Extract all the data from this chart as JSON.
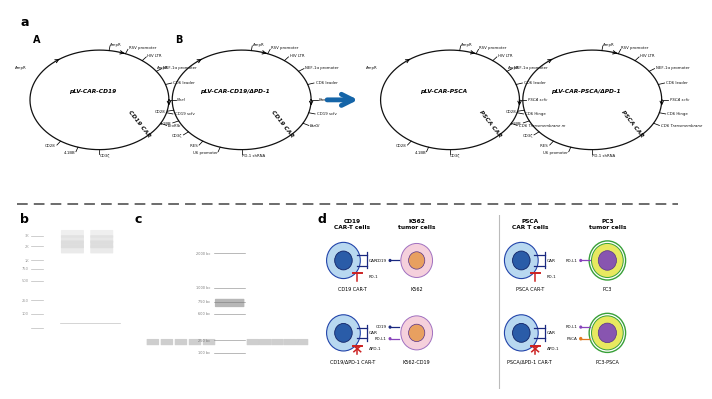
{
  "bg_color": "#ffffff",
  "panel_a_label": "a",
  "panel_b_label": "b",
  "panel_c_label": "c",
  "panel_d_label": "d",
  "plasmid_names": [
    "pLV-CAR-CD19",
    "pLV-CAR-CD19/ΔPD-1",
    "pLV-CAR-PSCA",
    "pLV-CAR-PSCA/ΔPD-1"
  ],
  "plasmid_letters": [
    "A",
    "B",
    "",
    ""
  ],
  "plasmid_car_labels": [
    "CD19 CAR",
    "CD19 CAR",
    "PSCA CAR",
    "PSCA CAR"
  ],
  "arrow_color": "#1565a8",
  "dashed_line_color": "#444444",
  "car_t_outer": "#b8d8f0",
  "car_t_inner": "#2a5ca8",
  "k562_outer": "#f5d0dc",
  "k562_inner": "#e8a060",
  "k562_edge": "#a070c0",
  "pc3_outer": "#e8e860",
  "pc3_inner": "#8855b0",
  "pc3_ring": "#38a038",
  "car_color": "#1a2880",
  "pd1_color": "#cc2222",
  "psca_dot_color": "#e07820",
  "gel_b_bg": "#080808",
  "gel_c_bg": "#080808",
  "gel_band_color": "#cccccc",
  "marker_band_color": "#888888",
  "plasmid_top_labels_A": [
    "AmpR",
    "RSV promoter",
    "HIV LTR",
    "NEF-1α promoter",
    "CD6 leader",
    "NheI",
    "CD19 scfv",
    "EcoRIb",
    "CD6 Hinge",
    "CD6 Transmembrane"
  ],
  "plasmid_bot_labels_A": [
    "CD3ζ",
    "4-1BB",
    "CD28"
  ],
  "plasmid_top_labels_B": [
    "AmpR",
    "RSV promoter",
    "HIV LTR",
    "NEF-1α promoter",
    "CD6 leader",
    "BamHII",
    "CD19 scfv",
    "BsrGI",
    "CD6 Hinge",
    "CD6 Transmembrane"
  ],
  "plasmid_bot_labels_B": [
    "PD-1 shRNA",
    "U6 promoter",
    "IRES",
    "CD3ζ",
    "4-1BB",
    "CD28"
  ],
  "plasmid_top_labels_C": [
    "AmpR",
    "RSV promoter",
    "HIV LTR",
    "NEF-1α promoter",
    "CD6 leader",
    "PSCA scfv",
    "CD6 Hinge",
    "CD6 Transmembrane m"
  ],
  "plasmid_bot_labels_C": [
    "CD3ζ",
    "4-1BB",
    "CD28"
  ],
  "plasmid_top_labels_D": [
    "AmpR",
    "RSV promoter",
    "HIV LTR",
    "NEF-1α promoter",
    "CD6 leader",
    "PSCA scfv",
    "CD6 Hinge",
    "CD6 Transmembrane"
  ],
  "plasmid_bot_labels_D": [
    "PD-1 shRNA",
    "U6 promoter",
    "IRES",
    "CD3ζ",
    "4-1BB",
    "CD28"
  ],
  "gel_b_size_labels": [
    "3K",
    "2K",
    "1K",
    "750",
    "500",
    "250",
    "100"
  ],
  "gel_b_size_y": [
    8.8,
    8.2,
    7.4,
    6.9,
    6.2,
    5.1,
    4.3
  ],
  "gel_c_size_labels": [
    "2000 bc",
    "1000 bc",
    "750 bc",
    "600 bc",
    "250 bc",
    "100 bc"
  ],
  "gel_c_size_y": [
    7.8,
    5.8,
    5.0,
    4.3,
    2.8,
    2.1
  ]
}
